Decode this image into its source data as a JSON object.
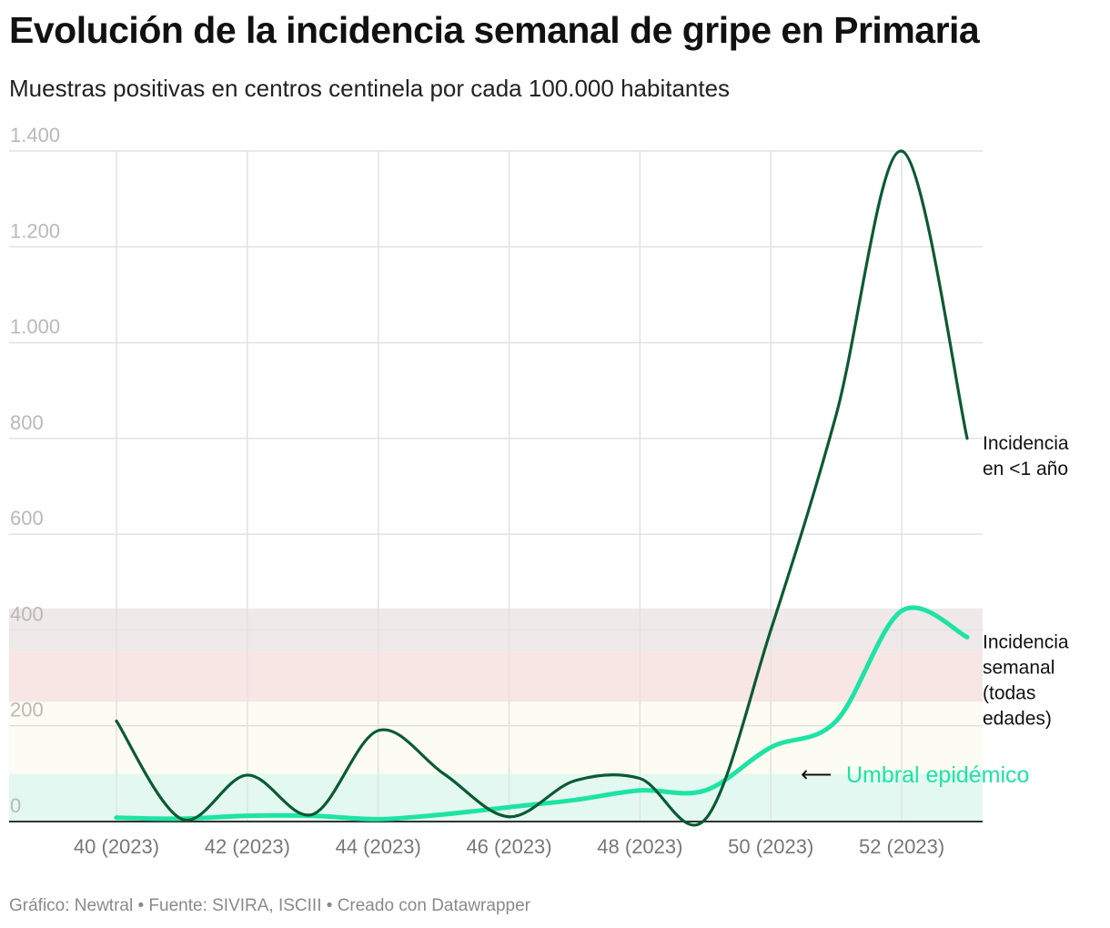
{
  "title": "Evolución de la incidencia semanal de gripe en Primaria",
  "subtitle": "Muestras positivas en centros centinela por cada 100.000 habitantes",
  "footer": "Gráfico: Newtral • Fuente: SIVIRA, ISCIII • Creado con Datawrapper",
  "chart_data": {
    "type": "line",
    "title": "Evolución de la incidencia semanal de gripe en Primaria",
    "subtitle": "Muestras positivas en centros centinela por cada 100.000 habitantes",
    "xlabel": "",
    "ylabel": "",
    "x": [
      40,
      41,
      42,
      43,
      44,
      45,
      46,
      47,
      48,
      49,
      50,
      51,
      52,
      53
    ],
    "xlim": [
      40,
      53
    ],
    "ylim": [
      0,
      1400
    ],
    "y_ticks": [
      0,
      200,
      400,
      600,
      800,
      1000,
      1200,
      1400
    ],
    "y_tick_labels": [
      "0",
      "200",
      "400",
      "600",
      "800",
      "1.000",
      "1.200",
      "1.400"
    ],
    "x_ticks": [
      40,
      42,
      44,
      46,
      48,
      50,
      52
    ],
    "x_tick_labels": [
      "40 (2023)",
      "42 (2023)",
      "44 (2023)",
      "46 (2023)",
      "48 (2023)",
      "50 (2023)",
      "52 (2023)"
    ],
    "bands": [
      {
        "from": 0,
        "to": 100,
        "color": "#e3f8f1"
      },
      {
        "from": 100,
        "to": 250,
        "color": "#fcfcf2"
      },
      {
        "from": 250,
        "to": 355,
        "color": "#f8e6e4"
      },
      {
        "from": 355,
        "to": 445,
        "color": "#efe9e9"
      }
    ],
    "series": [
      {
        "name": "Incidencia en <1 año",
        "label_lines": [
          "Incidencia",
          "en <1 año"
        ],
        "color": "#0b5a31",
        "values": [
          210,
          5,
          97,
          15,
          190,
          100,
          10,
          85,
          90,
          5,
          400,
          850,
          1400,
          800
        ]
      },
      {
        "name": "Incidencia semanal (todas edades)",
        "label_lines": [
          "Incidencia",
          "semanal",
          "(todas",
          "edades)"
        ],
        "color": "#1ee3a5",
        "values": [
          8,
          6,
          12,
          12,
          5,
          15,
          30,
          45,
          65,
          65,
          155,
          210,
          440,
          385
        ]
      }
    ],
    "annotation": {
      "text": "Umbral epidémico",
      "arrow": "⟵",
      "color": "#1ee3a5",
      "value": 95
    }
  }
}
